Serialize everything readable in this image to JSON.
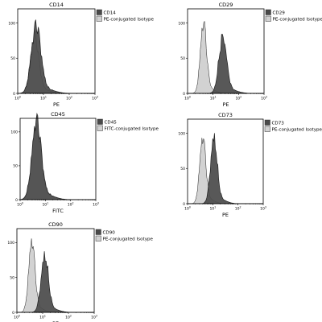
{
  "colors": {
    "marker_fill": "#4a4a4a",
    "isotype_fill": "#d2d2d2",
    "axis": "#000000",
    "text": "#000000"
  },
  "chart_data": [
    {
      "type": "area",
      "title": "CD14",
      "xlabel": "PE",
      "xscale": "log",
      "xlim": [
        1,
        1000
      ],
      "ylim": [
        0,
        120
      ],
      "x_ticks": [
        1,
        10,
        100,
        1000
      ],
      "y_ticks": [
        0,
        50,
        100
      ],
      "legend": [
        "CD14",
        "PE-conjugated Isotype"
      ],
      "series": [
        {
          "name": "CD14",
          "peak_x": 5.2,
          "peak_y": 95,
          "spread": 0.18
        },
        {
          "name": "PE-conjugated Isotype",
          "peak_x": 4.5,
          "peak_y": 80,
          "spread": 0.16
        }
      ]
    },
    {
      "type": "area",
      "title": "CD29",
      "xlabel": "PE",
      "xscale": "log",
      "xlim": [
        1,
        1000
      ],
      "ylim": [
        0,
        120
      ],
      "x_ticks": [
        1,
        10,
        100,
        1000
      ],
      "y_ticks": [
        0,
        50,
        100
      ],
      "legend": [
        "CD29",
        "PE-conjugated Isotype"
      ],
      "series": [
        {
          "name": "CD29",
          "peak_x": 24,
          "peak_y": 78,
          "spread": 0.15
        },
        {
          "name": "PE-conjugated Isotype",
          "peak_x": 4.2,
          "peak_y": 98,
          "spread": 0.12
        }
      ]
    },
    {
      "type": "area",
      "title": "CD45",
      "xlabel": "FITC",
      "xscale": "log",
      "xlim": [
        1,
        1000
      ],
      "ylim": [
        0,
        120
      ],
      "x_ticks": [
        1,
        10,
        100,
        1000
      ],
      "y_ticks": [
        0,
        50,
        100
      ],
      "legend": [
        "CD45",
        "FITC-conjugated Isotype"
      ],
      "series": [
        {
          "name": "CD45",
          "peak_x": 4.5,
          "peak_y": 115,
          "spread": 0.18
        },
        {
          "name": "FITC-conjugated Isotype",
          "peak_x": 4.5,
          "peak_y": 112,
          "spread": 0.17
        }
      ]
    },
    {
      "type": "area",
      "title": "CD73",
      "xlabel": "PE",
      "xscale": "log",
      "xlim": [
        1,
        1000
      ],
      "ylim": [
        0,
        120
      ],
      "x_ticks": [
        1,
        10,
        100,
        1000
      ],
      "y_ticks": [
        0,
        50,
        100
      ],
      "legend": [
        "CD73",
        "PE-conjugated Isotype"
      ],
      "series": [
        {
          "name": "CD73",
          "peak_x": 11,
          "peak_y": 90,
          "spread": 0.13
        },
        {
          "name": "PE-conjugated Isotype",
          "peak_x": 4.0,
          "peak_y": 92,
          "spread": 0.12
        }
      ]
    },
    {
      "type": "area",
      "title": "CD90",
      "xlabel": "PE",
      "xscale": "log",
      "xlim": [
        1,
        1000
      ],
      "ylim": [
        0,
        120
      ],
      "x_ticks": [
        1,
        10,
        100,
        1000
      ],
      "y_ticks": [
        0,
        50,
        100
      ],
      "legend": [
        "CD90",
        "PE-conjugated Isotype"
      ],
      "series": [
        {
          "name": "CD90",
          "peak_x": 12,
          "peak_y": 78,
          "spread": 0.14
        },
        {
          "name": "PE-conjugated Isotype",
          "peak_x": 3.8,
          "peak_y": 100,
          "spread": 0.12
        }
      ]
    }
  ]
}
